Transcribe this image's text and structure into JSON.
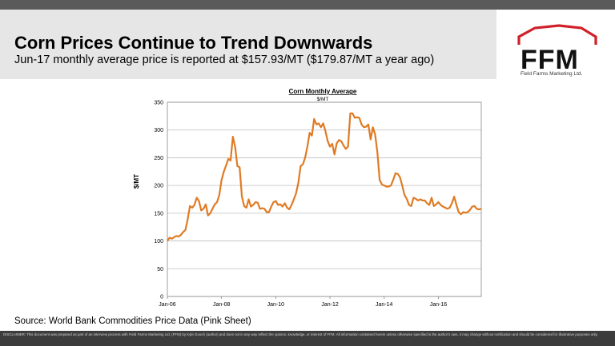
{
  "header": {
    "title": "Corn Prices Continue to Trend Downwards",
    "subtitle": "Jun-17 monthly average price is reported at $157.93/MT ($179.87/MT a year ago)"
  },
  "logo": {
    "text": "FFM",
    "tagline": "Field Farms Marketing Ltd.",
    "accent_color": "#d0202a"
  },
  "source": "Source: World Bank Commodities Price Data (Pink Sheet)",
  "disclaimer": "DISCLAIMER: This document was prepared as part of an interview process with Field Farms Marketing Ltd. (FFM) by Kyle Gooch (author) and does not in any way reflect the opinion, knowledge, or interest of FFM. All information contained herein unless otherwise specified is the author's own, it may change without notification and should be considered for illustrative purposes only.",
  "chart_data": {
    "type": "line",
    "title": "Corn Monthly Average",
    "subtitle": "$/MT",
    "xlabel": "",
    "ylabel": "$/MT",
    "ylim": [
      0,
      350
    ],
    "yticks": [
      0,
      50,
      100,
      150,
      200,
      250,
      300,
      350
    ],
    "xticks": [
      "Jan-06",
      "Jan-08",
      "Jan-10",
      "Jan-12",
      "Jan-14",
      "Jan-16"
    ],
    "grid": true,
    "line_color": "#e07b24",
    "x_start": "Jan-06",
    "x_end": "Jun-17",
    "series": [
      {
        "values": [
          100,
          106,
          104,
          107,
          109,
          108,
          111,
          116,
          120,
          139,
          163,
          160,
          165,
          178,
          172,
          155,
          158,
          166,
          146,
          150,
          158,
          166,
          170,
          183,
          210,
          225,
          236,
          248,
          245,
          288,
          270,
          235,
          233,
          180,
          163,
          160,
          175,
          162,
          165,
          170,
          169,
          158,
          159,
          158,
          152,
          152,
          162,
          170,
          172,
          165,
          166,
          162,
          168,
          160,
          157,
          165,
          175,
          186,
          205,
          235,
          238,
          250,
          270,
          295,
          290,
          320,
          310,
          312,
          305,
          312,
          298,
          280,
          270,
          275,
          256,
          276,
          282,
          280,
          272,
          266,
          270,
          330,
          330,
          322,
          323,
          322,
          310,
          305,
          306,
          310,
          283,
          305,
          292,
          260,
          210,
          202,
          200,
          198,
          198,
          200,
          210,
          222,
          221,
          215,
          200,
          183,
          176,
          165,
          163,
          178,
          176,
          173,
          175,
          173,
          173,
          168,
          165,
          178,
          163,
          166,
          170,
          165,
          162,
          160,
          158,
          160,
          168,
          180,
          165,
          152,
          148,
          152,
          151,
          152,
          156,
          162,
          163,
          158,
          157,
          158
        ]
      }
    ]
  }
}
